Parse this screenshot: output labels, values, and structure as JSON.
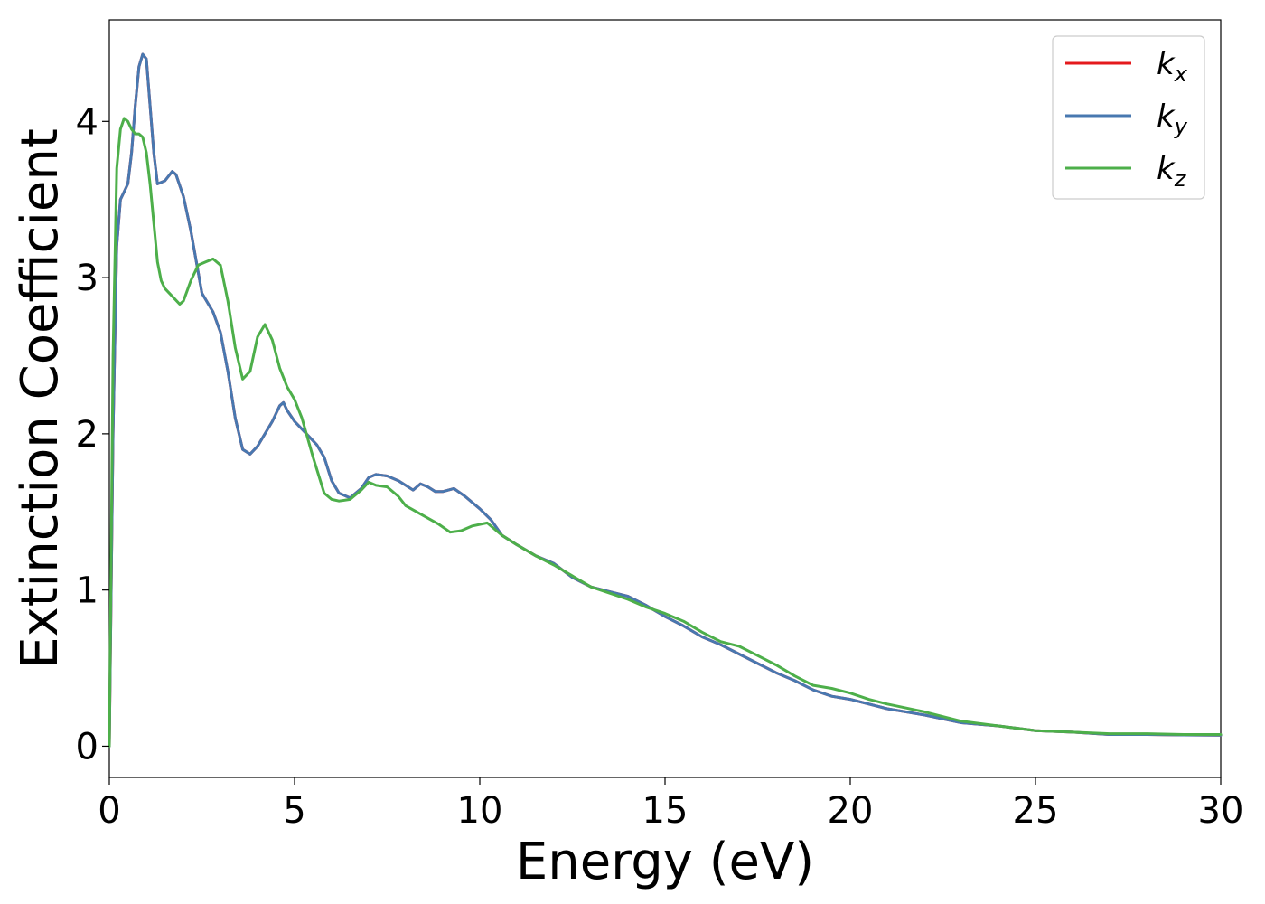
{
  "chart_data": {
    "type": "line",
    "xlabel": "Energy (eV)",
    "ylabel": "Extinction Coefficient",
    "xlim": [
      0,
      30
    ],
    "ylim": [
      -0.2,
      4.65
    ],
    "xticks": [
      0,
      5,
      10,
      15,
      20,
      25,
      30
    ],
    "yticks": [
      0,
      1,
      2,
      3,
      4
    ],
    "grid": false,
    "legend_position": "top-right",
    "series": [
      {
        "name": "k_x",
        "base": "k",
        "sub": "x",
        "color": "#e41a1c",
        "x": [
          0,
          0.1,
          0.2,
          0.3,
          0.4,
          0.5,
          0.6,
          0.7,
          0.8,
          0.9,
          1.0,
          1.1,
          1.2,
          1.3,
          1.5,
          1.7,
          1.8,
          2.0,
          2.2,
          2.5,
          2.8,
          3.0,
          3.2,
          3.4,
          3.6,
          3.8,
          4.0,
          4.2,
          4.4,
          4.6,
          4.7,
          4.8,
          5.0,
          5.2,
          5.4,
          5.6,
          5.8,
          6.0,
          6.2,
          6.5,
          6.8,
          7.0,
          7.2,
          7.5,
          7.8,
          8.0,
          8.2,
          8.4,
          8.6,
          8.8,
          9.0,
          9.3,
          9.6,
          10.0,
          10.3,
          10.6,
          11.0,
          11.5,
          12.0,
          12.5,
          13.0,
          13.5,
          14.0,
          14.5,
          15.0,
          15.5,
          16.0,
          16.5,
          17.0,
          17.5,
          18.0,
          18.5,
          19.0,
          19.5,
          20.0,
          21.0,
          22.0,
          23.0,
          24.0,
          25.0,
          26.0,
          27.0,
          28.0,
          29.0,
          30.0
        ],
        "y": [
          0,
          2.0,
          3.2,
          3.5,
          3.55,
          3.6,
          3.8,
          4.1,
          4.35,
          4.43,
          4.4,
          4.1,
          3.8,
          3.6,
          3.62,
          3.68,
          3.66,
          3.52,
          3.3,
          2.9,
          2.78,
          2.65,
          2.4,
          2.1,
          1.9,
          1.87,
          1.92,
          2.0,
          2.08,
          2.18,
          2.2,
          2.15,
          2.08,
          2.03,
          1.98,
          1.93,
          1.85,
          1.7,
          1.62,
          1.59,
          1.65,
          1.72,
          1.74,
          1.73,
          1.7,
          1.67,
          1.64,
          1.68,
          1.66,
          1.63,
          1.63,
          1.65,
          1.6,
          1.52,
          1.45,
          1.35,
          1.29,
          1.22,
          1.17,
          1.08,
          1.02,
          0.99,
          0.96,
          0.9,
          0.83,
          0.77,
          0.7,
          0.65,
          0.59,
          0.53,
          0.47,
          0.42,
          0.36,
          0.32,
          0.3,
          0.24,
          0.2,
          0.15,
          0.13,
          0.1,
          0.09,
          0.075,
          0.075,
          0.072,
          0.07
        ]
      },
      {
        "name": "k_y",
        "base": "k",
        "sub": "y",
        "color": "#4878b0",
        "x": [
          0,
          0.1,
          0.2,
          0.3,
          0.4,
          0.5,
          0.6,
          0.7,
          0.8,
          0.9,
          1.0,
          1.1,
          1.2,
          1.3,
          1.5,
          1.7,
          1.8,
          2.0,
          2.2,
          2.5,
          2.8,
          3.0,
          3.2,
          3.4,
          3.6,
          3.8,
          4.0,
          4.2,
          4.4,
          4.6,
          4.7,
          4.8,
          5.0,
          5.2,
          5.4,
          5.6,
          5.8,
          6.0,
          6.2,
          6.5,
          6.8,
          7.0,
          7.2,
          7.5,
          7.8,
          8.0,
          8.2,
          8.4,
          8.6,
          8.8,
          9.0,
          9.3,
          9.6,
          10.0,
          10.3,
          10.6,
          11.0,
          11.5,
          12.0,
          12.5,
          13.0,
          13.5,
          14.0,
          14.5,
          15.0,
          15.5,
          16.0,
          16.5,
          17.0,
          17.5,
          18.0,
          18.5,
          19.0,
          19.5,
          20.0,
          21.0,
          22.0,
          23.0,
          24.0,
          25.0,
          26.0,
          27.0,
          28.0,
          29.0,
          30.0
        ],
        "y": [
          0,
          2.0,
          3.2,
          3.5,
          3.55,
          3.6,
          3.8,
          4.1,
          4.35,
          4.43,
          4.4,
          4.1,
          3.8,
          3.6,
          3.62,
          3.68,
          3.66,
          3.52,
          3.3,
          2.9,
          2.78,
          2.65,
          2.4,
          2.1,
          1.9,
          1.87,
          1.92,
          2.0,
          2.08,
          2.18,
          2.2,
          2.15,
          2.08,
          2.03,
          1.98,
          1.93,
          1.85,
          1.7,
          1.62,
          1.59,
          1.65,
          1.72,
          1.74,
          1.73,
          1.7,
          1.67,
          1.64,
          1.68,
          1.66,
          1.63,
          1.63,
          1.65,
          1.6,
          1.52,
          1.45,
          1.35,
          1.29,
          1.22,
          1.17,
          1.08,
          1.02,
          0.99,
          0.96,
          0.9,
          0.83,
          0.77,
          0.7,
          0.65,
          0.59,
          0.53,
          0.47,
          0.42,
          0.36,
          0.32,
          0.3,
          0.24,
          0.2,
          0.15,
          0.13,
          0.1,
          0.09,
          0.075,
          0.075,
          0.072,
          0.07
        ]
      },
      {
        "name": "k_z",
        "base": "k",
        "sub": "z",
        "color": "#4daf4a",
        "x": [
          0,
          0.1,
          0.2,
          0.3,
          0.4,
          0.5,
          0.6,
          0.7,
          0.8,
          0.9,
          1.0,
          1.1,
          1.2,
          1.3,
          1.4,
          1.5,
          1.7,
          1.9,
          2.0,
          2.2,
          2.4,
          2.6,
          2.8,
          3.0,
          3.2,
          3.4,
          3.6,
          3.8,
          4.0,
          4.2,
          4.4,
          4.6,
          4.8,
          5.0,
          5.2,
          5.5,
          5.8,
          6.0,
          6.2,
          6.5,
          6.8,
          7.0,
          7.2,
          7.5,
          7.8,
          8.0,
          8.3,
          8.6,
          8.9,
          9.2,
          9.5,
          9.8,
          10.2,
          10.6,
          11.0,
          11.5,
          12.0,
          12.5,
          13.0,
          13.5,
          14.0,
          14.5,
          15.0,
          15.5,
          16.0,
          16.5,
          17.0,
          17.5,
          18.0,
          18.5,
          19.0,
          19.5,
          20.0,
          20.5,
          21.0,
          22.0,
          23.0,
          24.0,
          25.0,
          26.0,
          27.0,
          28.0,
          29.0,
          30.0
        ],
        "y": [
          0,
          2.5,
          3.7,
          3.95,
          4.02,
          4.0,
          3.95,
          3.92,
          3.92,
          3.9,
          3.8,
          3.6,
          3.35,
          3.1,
          2.98,
          2.93,
          2.88,
          2.83,
          2.85,
          2.98,
          3.08,
          3.1,
          3.12,
          3.08,
          2.85,
          2.55,
          2.35,
          2.4,
          2.62,
          2.7,
          2.6,
          2.42,
          2.3,
          2.22,
          2.1,
          1.85,
          1.62,
          1.58,
          1.57,
          1.58,
          1.64,
          1.69,
          1.67,
          1.66,
          1.6,
          1.54,
          1.5,
          1.46,
          1.42,
          1.37,
          1.38,
          1.41,
          1.43,
          1.35,
          1.29,
          1.22,
          1.16,
          1.09,
          1.02,
          0.98,
          0.94,
          0.89,
          0.85,
          0.8,
          0.73,
          0.67,
          0.64,
          0.58,
          0.52,
          0.45,
          0.39,
          0.37,
          0.34,
          0.3,
          0.27,
          0.22,
          0.16,
          0.13,
          0.1,
          0.09,
          0.08,
          0.08,
          0.075,
          0.075
        ]
      }
    ]
  }
}
